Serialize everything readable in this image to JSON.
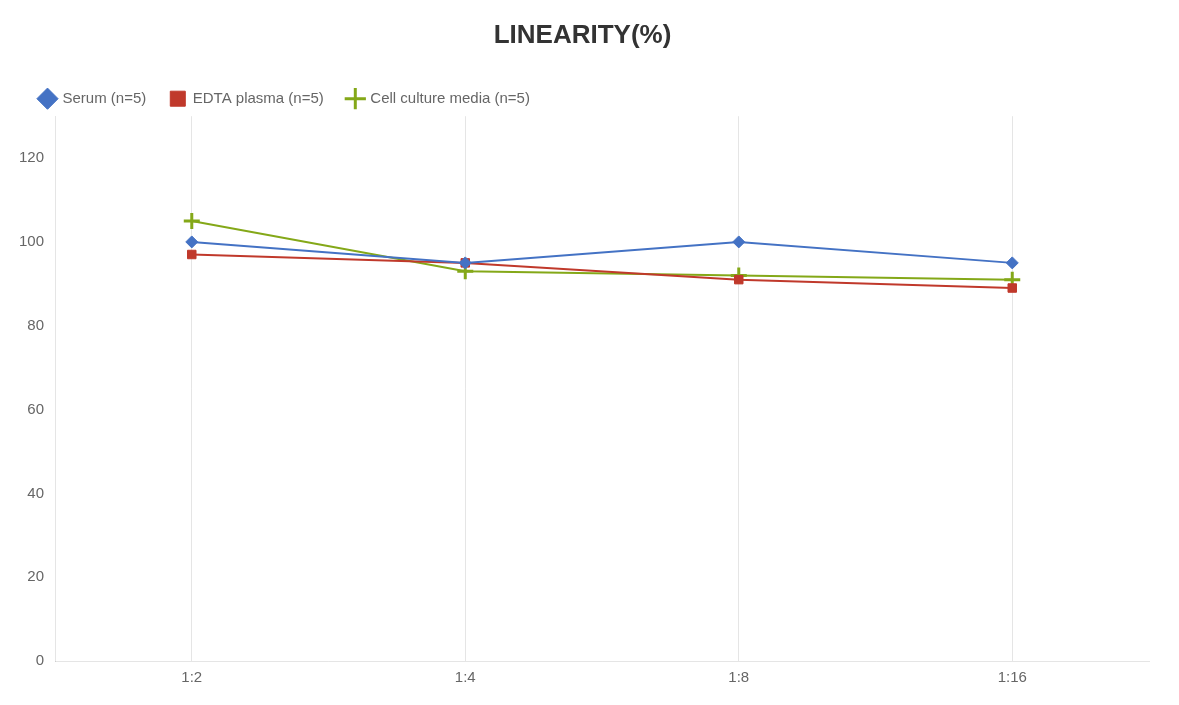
{
  "chart_data": {
    "type": "line",
    "title": "LINEARITY(%)",
    "categories": [
      "1:2",
      "1:4",
      "1:8",
      "1:16"
    ],
    "series": [
      {
        "name": "Serum (n=5)",
        "color": "#4472C4",
        "marker": "diamond",
        "values": [
          100,
          95,
          100,
          95
        ]
      },
      {
        "name": "EDTA plasma (n=5)",
        "color": "#C0392B",
        "marker": "square",
        "values": [
          97,
          95,
          91,
          89
        ]
      },
      {
        "name": "Cell culture media (n=5)",
        "color": "#84A818",
        "marker": "plus",
        "values": [
          105,
          93,
          92,
          91
        ]
      }
    ],
    "ylim": [
      0,
      130
    ],
    "yticks": [
      0,
      20,
      40,
      60,
      80,
      100,
      120
    ],
    "grid": "x",
    "legend": "top"
  }
}
